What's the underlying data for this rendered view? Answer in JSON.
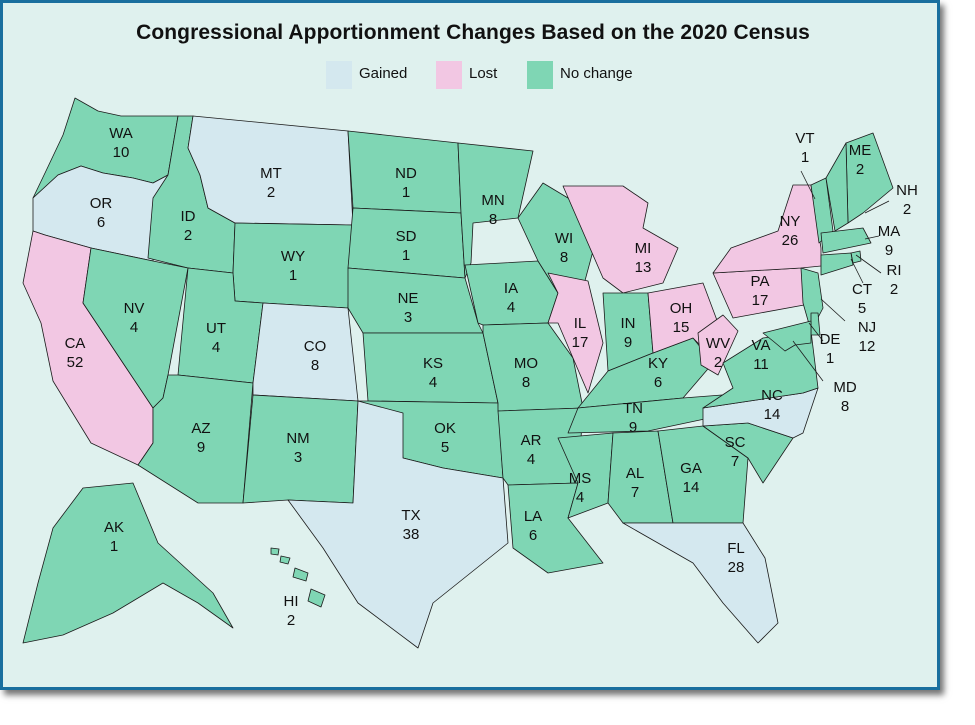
{
  "title": "Congressional Apportionment Changes Based on the 2020 Census",
  "legend": [
    {
      "key": "gained",
      "label": "Gained",
      "color": "#d4e8ef"
    },
    {
      "key": "lost",
      "label": "Lost",
      "color": "#f2c7e3"
    },
    {
      "key": "none",
      "label": "No change",
      "color": "#7fd6b4"
    }
  ],
  "colors": {
    "gained": "#d4e8ef",
    "lost": "#f2c7e3",
    "none": "#7fd6b4",
    "background": "#dff1ee",
    "border": "#1a6f9e"
  },
  "states": [
    {
      "abbr": "WA",
      "seats": "10",
      "status": "none"
    },
    {
      "abbr": "OR",
      "seats": "6",
      "status": "gained"
    },
    {
      "abbr": "CA",
      "seats": "52",
      "status": "lost"
    },
    {
      "abbr": "ID",
      "seats": "2",
      "status": "none"
    },
    {
      "abbr": "NV",
      "seats": "4",
      "status": "none"
    },
    {
      "abbr": "MT",
      "seats": "2",
      "status": "gained"
    },
    {
      "abbr": "WY",
      "seats": "1",
      "status": "none"
    },
    {
      "abbr": "UT",
      "seats": "4",
      "status": "none"
    },
    {
      "abbr": "AZ",
      "seats": "9",
      "status": "none"
    },
    {
      "abbr": "CO",
      "seats": "8",
      "status": "gained"
    },
    {
      "abbr": "NM",
      "seats": "3",
      "status": "none"
    },
    {
      "abbr": "ND",
      "seats": "1",
      "status": "none"
    },
    {
      "abbr": "SD",
      "seats": "1",
      "status": "none"
    },
    {
      "abbr": "NE",
      "seats": "3",
      "status": "none"
    },
    {
      "abbr": "KS",
      "seats": "4",
      "status": "none"
    },
    {
      "abbr": "OK",
      "seats": "5",
      "status": "none"
    },
    {
      "abbr": "TX",
      "seats": "38",
      "status": "gained"
    },
    {
      "abbr": "MN",
      "seats": "8",
      "status": "none"
    },
    {
      "abbr": "IA",
      "seats": "4",
      "status": "none"
    },
    {
      "abbr": "MO",
      "seats": "8",
      "status": "none"
    },
    {
      "abbr": "AR",
      "seats": "4",
      "status": "none"
    },
    {
      "abbr": "LA",
      "seats": "6",
      "status": "none"
    },
    {
      "abbr": "WI",
      "seats": "8",
      "status": "none"
    },
    {
      "abbr": "IL",
      "seats": "17",
      "status": "lost"
    },
    {
      "abbr": "MS",
      "seats": "4",
      "status": "none"
    },
    {
      "abbr": "MI",
      "seats": "13",
      "status": "lost"
    },
    {
      "abbr": "IN",
      "seats": "9",
      "status": "none"
    },
    {
      "abbr": "KY",
      "seats": "6",
      "status": "none"
    },
    {
      "abbr": "TN",
      "seats": "9",
      "status": "none"
    },
    {
      "abbr": "AL",
      "seats": "7",
      "status": "none"
    },
    {
      "abbr": "OH",
      "seats": "15",
      "status": "lost"
    },
    {
      "abbr": "WV",
      "seats": "2",
      "status": "lost"
    },
    {
      "abbr": "GA",
      "seats": "14",
      "status": "none"
    },
    {
      "abbr": "FL",
      "seats": "28",
      "status": "gained"
    },
    {
      "abbr": "SC",
      "seats": "7",
      "status": "none"
    },
    {
      "abbr": "NC",
      "seats": "14",
      "status": "gained"
    },
    {
      "abbr": "VA",
      "seats": "11",
      "status": "none"
    },
    {
      "abbr": "PA",
      "seats": "17",
      "status": "lost"
    },
    {
      "abbr": "NY",
      "seats": "26",
      "status": "lost"
    },
    {
      "abbr": "VT",
      "seats": "1",
      "status": "none"
    },
    {
      "abbr": "ME",
      "seats": "2",
      "status": "none"
    },
    {
      "abbr": "NH",
      "seats": "2",
      "status": "none"
    },
    {
      "abbr": "MA",
      "seats": "9",
      "status": "none"
    },
    {
      "abbr": "RI",
      "seats": "2",
      "status": "none"
    },
    {
      "abbr": "CT",
      "seats": "5",
      "status": "none"
    },
    {
      "abbr": "NJ",
      "seats": "12",
      "status": "none"
    },
    {
      "abbr": "DE",
      "seats": "1",
      "status": "none"
    },
    {
      "abbr": "MD",
      "seats": "8",
      "status": "none"
    },
    {
      "abbr": "AK",
      "seats": "1",
      "status": "none"
    },
    {
      "abbr": "HI",
      "seats": "2",
      "status": "none"
    }
  ]
}
